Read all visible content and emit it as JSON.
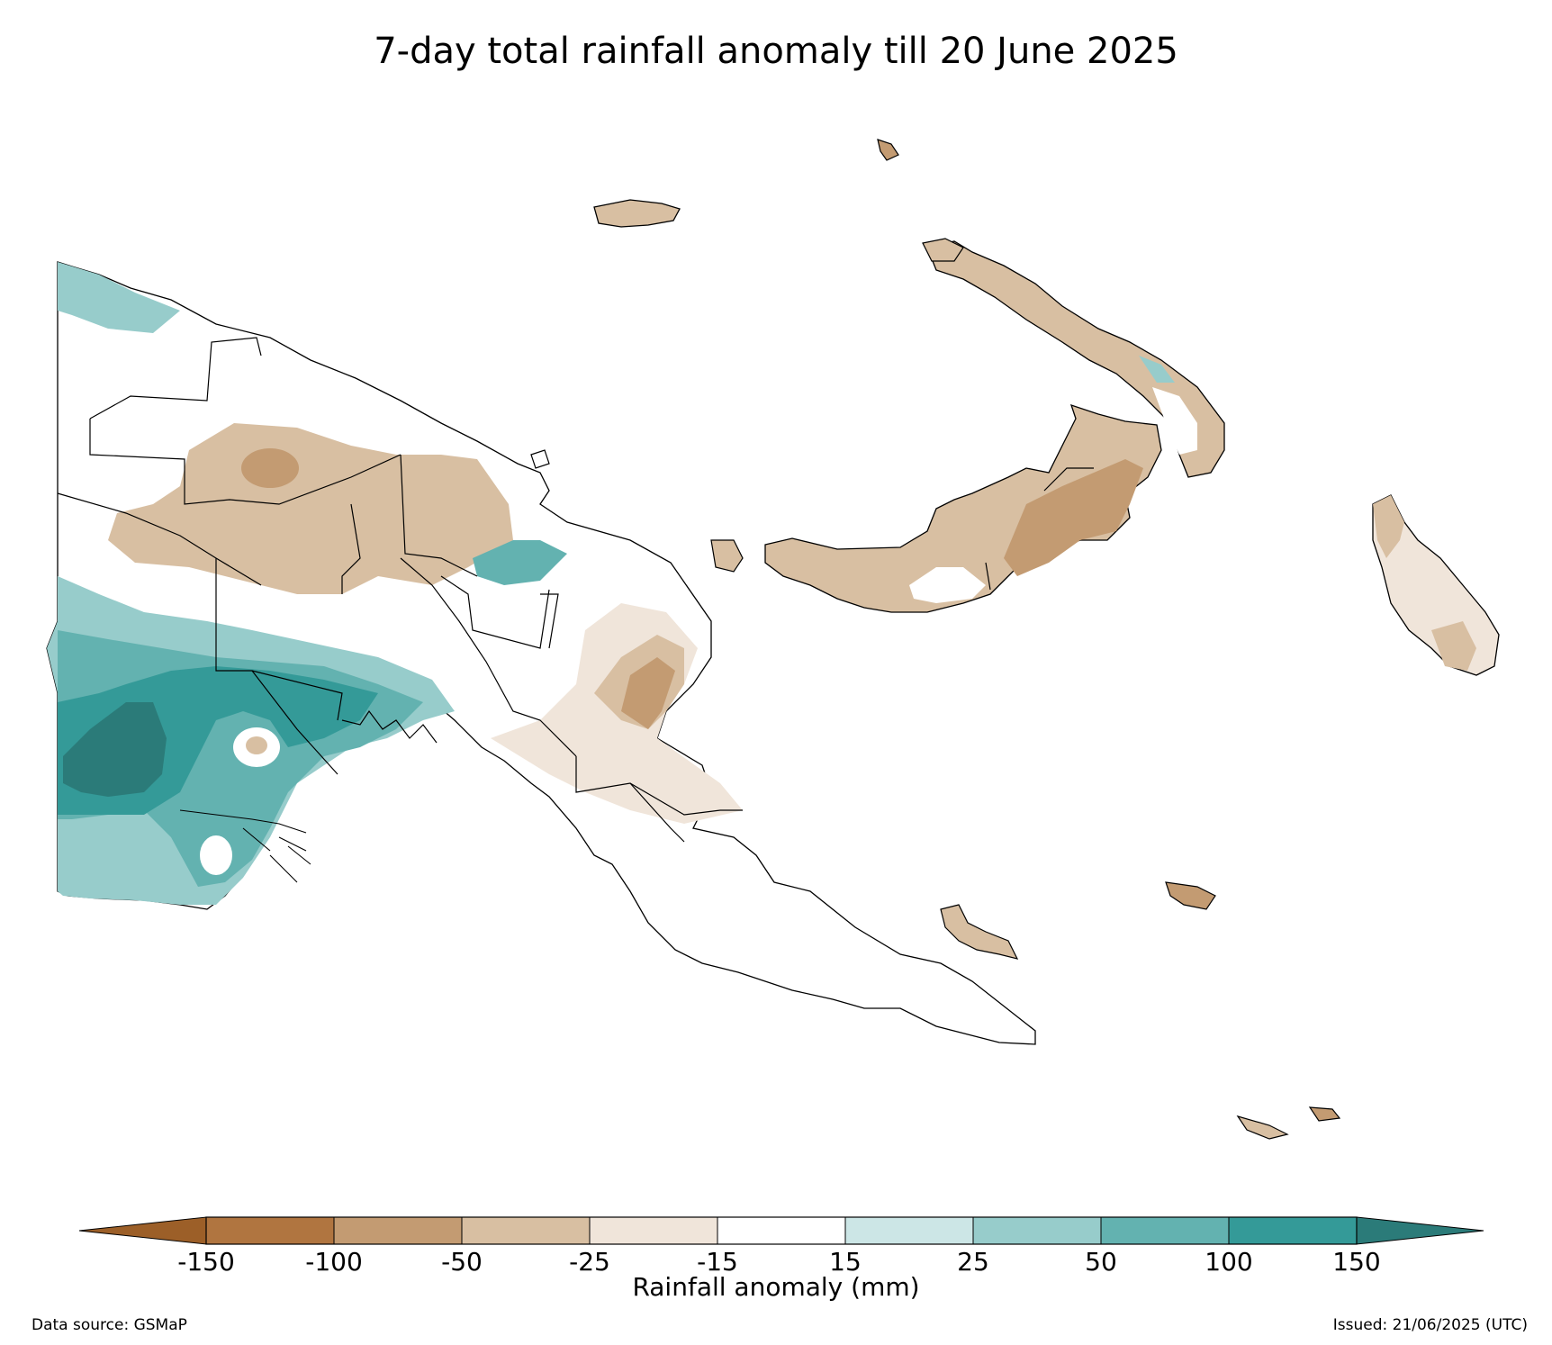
{
  "title": "7-day total rainfall anomaly till 20 June 2025",
  "colorbar": {
    "label": "Rainfall anomaly (mm)",
    "ticks": [
      "-150",
      "-100",
      "-50",
      "-25",
      "-15",
      "15",
      "25",
      "50",
      "100",
      "150"
    ],
    "colors": {
      "lt_neg150": "#9c5f28",
      "neg150_neg100": "#b07540",
      "neg100_neg50": "#c39b72",
      "neg50_neg25": "#d8bfa2",
      "neg25_neg15": "#f0e5da",
      "neg15_15": "#ffffff",
      "15_25": "#cce6e6",
      "25_50": "#97cccb",
      "50_100": "#63b2b0",
      "100_150": "#349a98",
      "gt_150": "#2b7b79"
    }
  },
  "footer": {
    "source": "Data source: GSMaP",
    "issued": "Issued: 21/06/2025 (UTC)"
  }
}
